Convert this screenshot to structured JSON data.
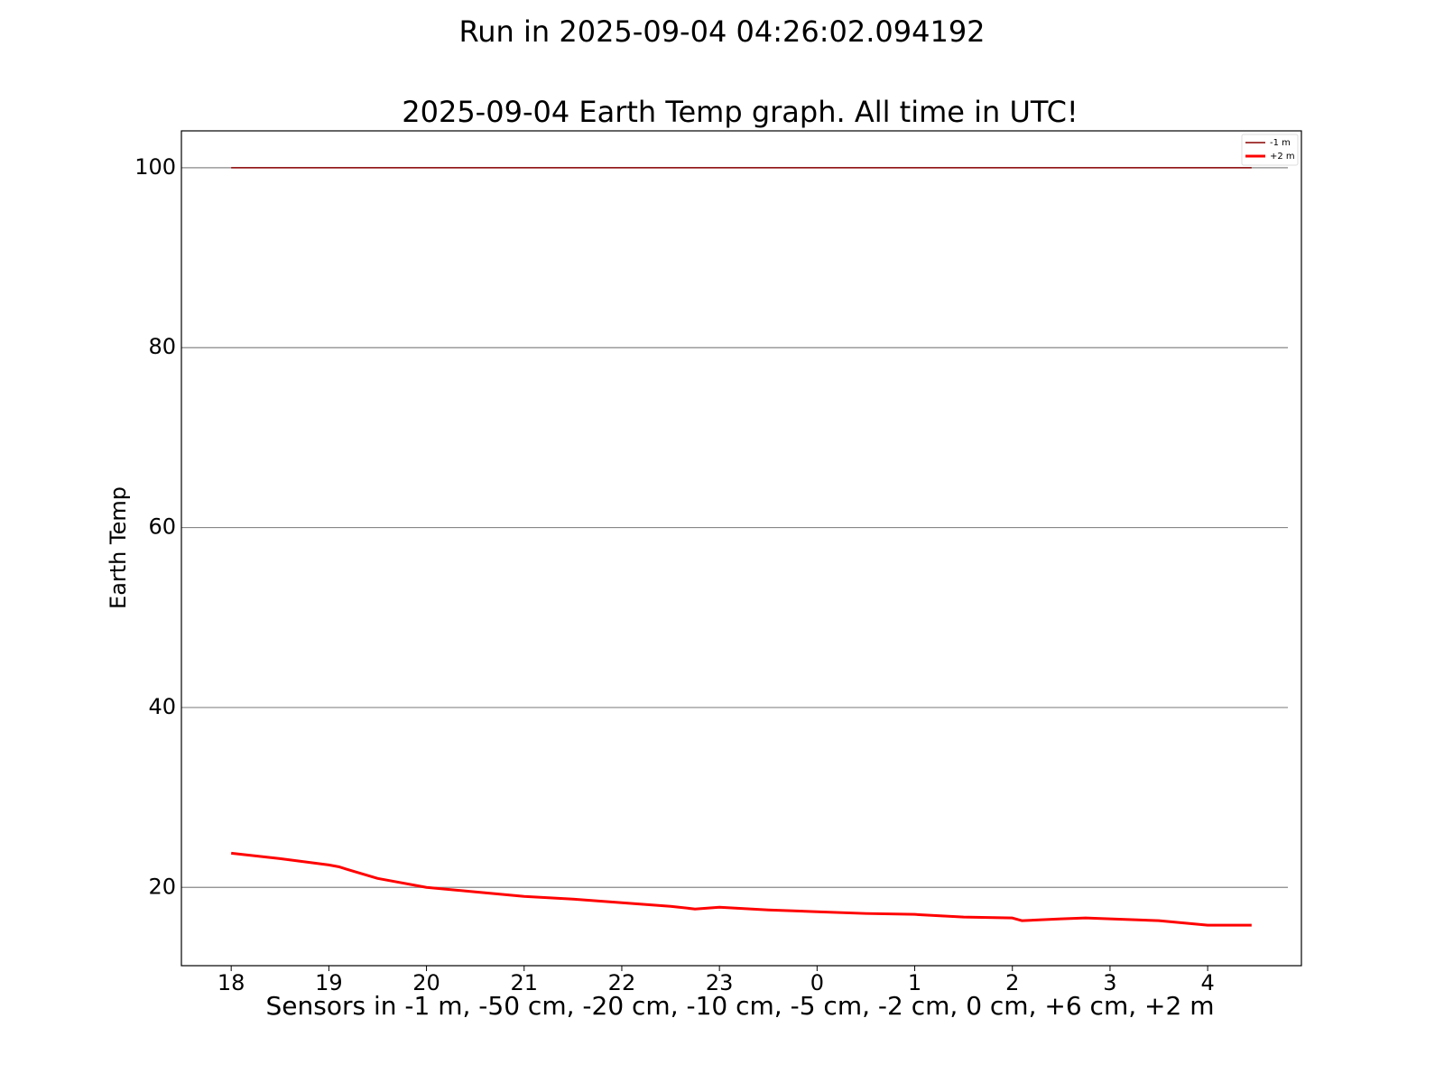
{
  "chart_data": {
    "type": "line",
    "suptitle": "Run in 2025-09-04 04:26:02.094192",
    "title": "2025-09-04 Earth Temp graph. All time in UTC!",
    "xlabel": "Sensors in  -1 m, -50 cm, -20 cm, -10 cm, -5 cm, -2 cm, 0 cm, +6 cm, +2 m",
    "ylabel": "Earth Temp",
    "x": [
      18,
      18.5,
      19,
      19.1,
      19.25,
      19.5,
      20,
      20.5,
      21,
      21.5,
      22,
      22.5,
      22.75,
      23,
      23.5,
      24,
      24.5,
      25,
      25.5,
      26,
      26.1,
      26.5,
      26.75,
      27,
      27.5,
      28,
      28.45
    ],
    "series": [
      {
        "name": "-1 m",
        "color": "#8b0000",
        "width": 1.5,
        "values": [
          100,
          100,
          100,
          100,
          100,
          100,
          100,
          100,
          100,
          100,
          100,
          100,
          100,
          100,
          100,
          100,
          100,
          100,
          100,
          100,
          100,
          100,
          100,
          100,
          100,
          100,
          100
        ]
      },
      {
        "name": "+2 m",
        "color": "#ff0000",
        "width": 3,
        "values": [
          23.8,
          23.2,
          22.5,
          22.3,
          21.8,
          21.0,
          20.0,
          19.5,
          19.0,
          18.7,
          18.3,
          17.9,
          17.6,
          17.8,
          17.5,
          17.3,
          17.1,
          17.0,
          16.7,
          16.6,
          16.3,
          16.5,
          16.6,
          16.5,
          16.3,
          15.8,
          15.8
        ]
      }
    ],
    "xlim": [
      17.49,
      28.96
    ],
    "xticks": [
      18,
      19,
      20,
      21,
      22,
      23,
      {
        "value": 24,
        "label": "0"
      },
      {
        "value": 25,
        "label": "1"
      },
      {
        "value": 26,
        "label": "2"
      },
      {
        "value": 27,
        "label": "3"
      },
      {
        "value": 28,
        "label": "4"
      }
    ],
    "ylim": [
      11.3,
      104.1
    ],
    "yticks": [
      20,
      40,
      60,
      80,
      100
    ],
    "grid": true,
    "legend": "upper right"
  }
}
